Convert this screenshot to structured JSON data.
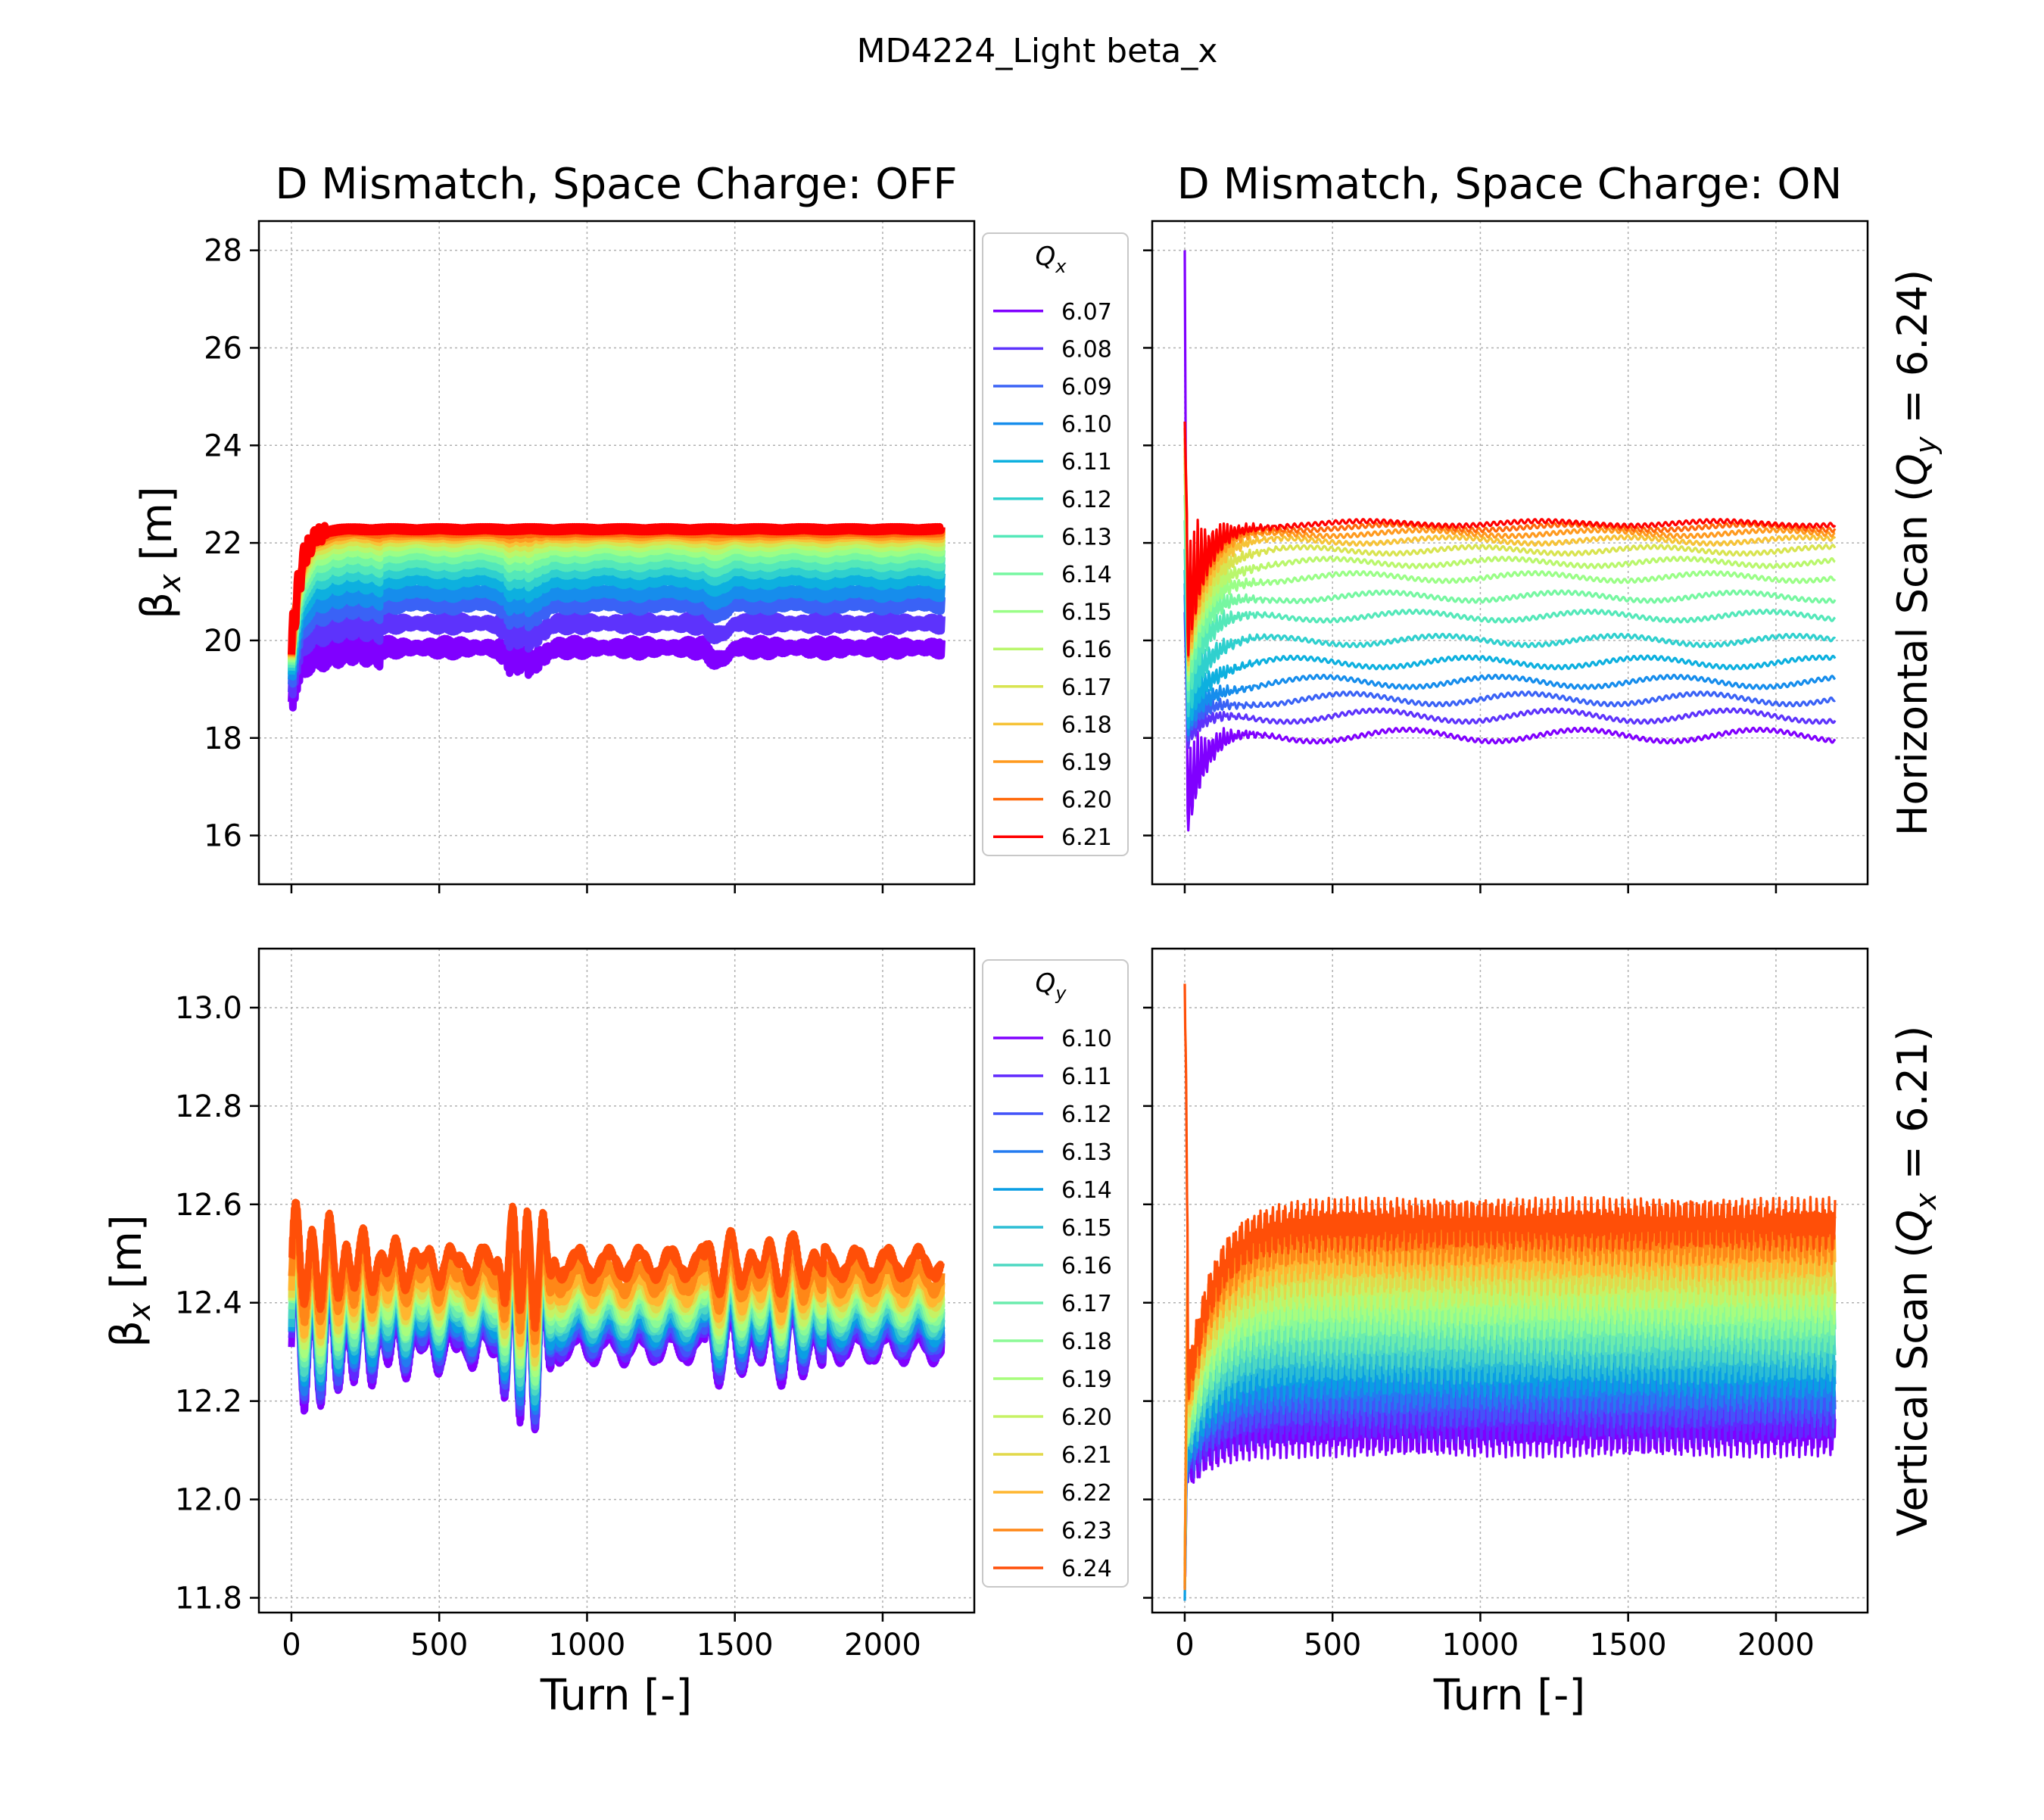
{
  "figure": {
    "suptitle": "MD4224_Light beta_x"
  },
  "colors": {
    "horizontal_scan": [
      "#8000ff",
      "#5d33fc",
      "#3a62f6",
      "#168dec",
      "#0db0df",
      "#2fd0ce",
      "#54e8b9",
      "#76f7a1",
      "#9afe87",
      "#b9f76c",
      "#d8e450",
      "#f6c337",
      "#ff9a1f",
      "#ff6a0c",
      "#ff0000"
    ],
    "vertical_scan": [
      "#8000ff",
      "#6029fe",
      "#4353f9",
      "#237bf0",
      "#0a9ee4",
      "#2bbdd4",
      "#4dd8c2",
      "#6becad",
      "#8bfa96",
      "#a8fd7e",
      "#c6f264",
      "#e2d94a",
      "#ffb62f",
      "#ff8717",
      "#ff4f08",
      "#ff0000"
    ]
  },
  "chart_data": [
    {
      "type": "line",
      "title": "D Mismatch, Space Charge: OFF",
      "xlabel": "Turn [-]",
      "ylabel": "β_x [m]",
      "xlim": [
        -110,
        2310
      ],
      "ylim": [
        15.0,
        28.6
      ],
      "xticks": [
        0,
        500,
        1000,
        1500,
        2000
      ],
      "yticks": [
        16,
        18,
        20,
        22,
        24,
        26,
        28
      ],
      "grid": true,
      "legend": {
        "title": "Q_x",
        "position": "outside-right"
      },
      "x_turns": [
        0,
        2200
      ],
      "series": [
        {
          "name": "6.07",
          "level": 19.85
        },
        {
          "name": "6.08",
          "level": 20.35
        },
        {
          "name": "6.09",
          "level": 20.75
        },
        {
          "name": "6.10",
          "level": 21.0
        },
        {
          "name": "6.11",
          "level": 21.25
        },
        {
          "name": "6.12",
          "level": 21.45
        },
        {
          "name": "6.13",
          "level": 21.6
        },
        {
          "name": "6.14",
          "level": 21.75
        },
        {
          "name": "6.15",
          "level": 21.88
        },
        {
          "name": "6.16",
          "level": 21.98
        },
        {
          "name": "6.17",
          "level": 22.06
        },
        {
          "name": "6.18",
          "level": 22.13
        },
        {
          "name": "6.19",
          "level": 22.18
        },
        {
          "name": "6.20",
          "level": 22.23
        },
        {
          "name": "6.21",
          "level": 22.28
        }
      ]
    },
    {
      "type": "line",
      "title": "D Mismatch, Space Charge: ON",
      "xlabel": "",
      "ylabel": "",
      "side_label": "Horizontal Scan (Q_y = 6.24)",
      "xlim": [
        -110,
        2310
      ],
      "ylim": [
        15.0,
        28.6
      ],
      "xticks": [
        0,
        500,
        1000,
        1500,
        2000
      ],
      "yticks": [
        16,
        18,
        20,
        22,
        24,
        26,
        28
      ],
      "grid": true,
      "peak": 28.0,
      "trough": 15.7,
      "x_turns": [
        0,
        2200
      ],
      "series": [
        {
          "name": "6.07",
          "level": 18.05
        },
        {
          "name": "6.08",
          "level": 18.45
        },
        {
          "name": "6.09",
          "level": 18.8
        },
        {
          "name": "6.10",
          "level": 19.15
        },
        {
          "name": "6.11",
          "level": 19.55
        },
        {
          "name": "6.12",
          "level": 20.0
        },
        {
          "name": "6.13",
          "level": 20.5
        },
        {
          "name": "6.14",
          "level": 20.9
        },
        {
          "name": "6.15",
          "level": 21.3
        },
        {
          "name": "6.16",
          "level": 21.6
        },
        {
          "name": "6.17",
          "level": 21.85
        },
        {
          "name": "6.18",
          "level": 22.05
        },
        {
          "name": "6.19",
          "level": 22.2
        },
        {
          "name": "6.20",
          "level": 22.32
        },
        {
          "name": "6.21",
          "level": 22.4
        }
      ]
    },
    {
      "type": "line",
      "title": "",
      "xlabel": "Turn [-]",
      "ylabel": "β_x [m]",
      "xlim": [
        -110,
        2310
      ],
      "ylim": [
        11.77,
        13.12
      ],
      "xticks": [
        0,
        500,
        1000,
        1500,
        2000
      ],
      "xtick_labels": [
        "0",
        "500",
        "1000",
        "1500",
        "2000"
      ],
      "yticks": [
        11.8,
        12.0,
        12.2,
        12.4,
        12.6,
        12.8,
        13.0
      ],
      "ytick_labels": [
        "11.8",
        "12.0",
        "12.2",
        "12.4",
        "12.6",
        "12.8",
        "13.0"
      ],
      "grid": true,
      "legend": {
        "title": "Q_y",
        "position": "outside-right"
      },
      "x_turns": [
        0,
        2200
      ],
      "series": [
        {
          "name": "6.10",
          "level": 12.31
        },
        {
          "name": "6.11",
          "level": 12.32
        },
        {
          "name": "6.12",
          "level": 12.33
        },
        {
          "name": "6.13",
          "level": 12.34
        },
        {
          "name": "6.14",
          "level": 12.35
        },
        {
          "name": "6.15",
          "level": 12.36
        },
        {
          "name": "6.16",
          "level": 12.37
        },
        {
          "name": "6.17",
          "level": 12.38
        },
        {
          "name": "6.18",
          "level": 12.39
        },
        {
          "name": "6.19",
          "level": 12.4
        },
        {
          "name": "6.20",
          "level": 12.41
        },
        {
          "name": "6.21",
          "level": 12.42
        },
        {
          "name": "6.22",
          "level": 12.43
        },
        {
          "name": "6.23",
          "level": 12.45
        },
        {
          "name": "6.24",
          "level": 12.48
        }
      ]
    },
    {
      "type": "line",
      "title": "",
      "xlabel": "Turn [-]",
      "ylabel": "",
      "side_label": "Vertical Scan (Q_x = 6.21)",
      "xlim": [
        -110,
        2310
      ],
      "ylim": [
        11.77,
        13.12
      ],
      "xticks": [
        0,
        500,
        1000,
        1500,
        2000
      ],
      "xtick_labels": [
        "0",
        "500",
        "1000",
        "1500",
        "2000"
      ],
      "yticks": [
        11.8,
        12.0,
        12.2,
        12.4,
        12.6,
        12.8,
        13.0
      ],
      "grid": true,
      "peak": 13.05,
      "trough": 11.84,
      "x_turns": [
        0,
        2200
      ],
      "series": [
        {
          "name": "6.10",
          "level": 12.14
        },
        {
          "name": "6.11",
          "level": 12.17
        },
        {
          "name": "6.12",
          "level": 12.2
        },
        {
          "name": "6.13",
          "level": 12.23
        },
        {
          "name": "6.14",
          "level": 12.26
        },
        {
          "name": "6.15",
          "level": 12.29
        },
        {
          "name": "6.16",
          "level": 12.32
        },
        {
          "name": "6.17",
          "level": 12.35
        },
        {
          "name": "6.18",
          "level": 12.38
        },
        {
          "name": "6.19",
          "level": 12.41
        },
        {
          "name": "6.20",
          "level": 12.44
        },
        {
          "name": "6.21",
          "level": 12.47
        },
        {
          "name": "6.22",
          "level": 12.5
        },
        {
          "name": "6.23",
          "level": 12.53
        },
        {
          "name": "6.24",
          "level": 12.56
        }
      ]
    }
  ]
}
